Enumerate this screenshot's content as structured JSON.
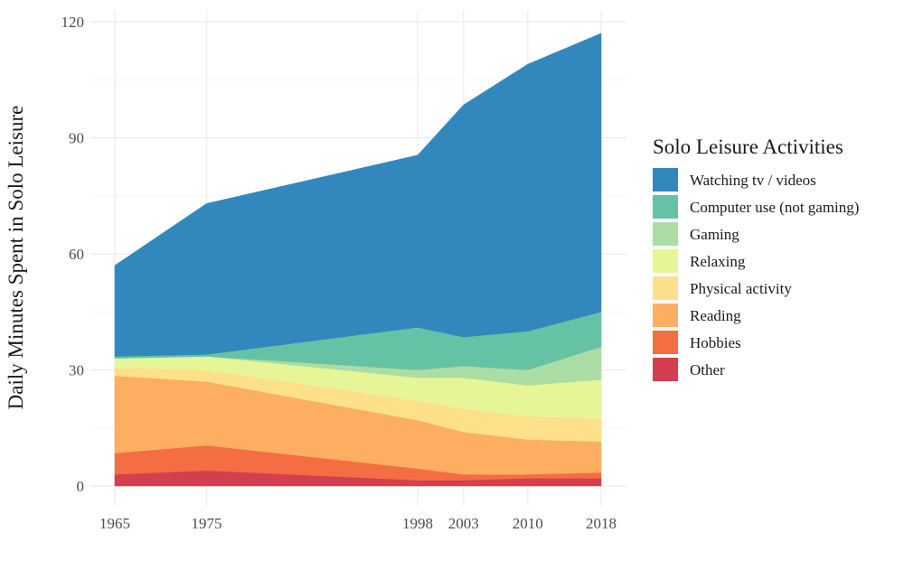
{
  "chart_data": {
    "type": "area",
    "stacked": true,
    "title": "",
    "xlabel": "",
    "ylabel": "Daily Minutes Spent in Solo Leisure",
    "x": [
      1965,
      1975,
      1998,
      2003,
      2010,
      2018
    ],
    "xticks": [
      "1965",
      "1975",
      "1998",
      "2003",
      "2010",
      "2018"
    ],
    "yticks": [
      "0",
      "30",
      "60",
      "90",
      "120"
    ],
    "ylim": [
      0,
      120
    ],
    "grid": true,
    "legend": {
      "title": "Solo Leisure Activities",
      "position": "right"
    },
    "series": [
      {
        "name": "Other",
        "color": "#d53e4f",
        "values": [
          3,
          4,
          1.5,
          1.5,
          2,
          2
        ]
      },
      {
        "name": "Hobbies",
        "color": "#f46d43",
        "values": [
          5.5,
          6.5,
          3,
          1.5,
          1,
          1.5
        ]
      },
      {
        "name": "Reading",
        "color": "#fdae61",
        "values": [
          20,
          16.5,
          12.5,
          11,
          9,
          8
        ]
      },
      {
        "name": "Physical activity",
        "color": "#fee08b",
        "values": [
          2,
          3,
          5,
          6,
          6,
          6
        ]
      },
      {
        "name": "Relaxing",
        "color": "#e6f598",
        "values": [
          2.5,
          3.5,
          6,
          8,
          8,
          10
        ]
      },
      {
        "name": "Gaming",
        "color": "#abdda4",
        "values": [
          0,
          0,
          2,
          3,
          4,
          8.5
        ]
      },
      {
        "name": "Computer use (not gaming)",
        "color": "#66c2a5",
        "values": [
          0.5,
          0.5,
          11,
          7.5,
          10,
          9
        ]
      },
      {
        "name": "Watching tv / videos",
        "color": "#3288bd",
        "values": [
          23.5,
          39,
          44.5,
          60,
          69,
          72
        ]
      }
    ]
  }
}
